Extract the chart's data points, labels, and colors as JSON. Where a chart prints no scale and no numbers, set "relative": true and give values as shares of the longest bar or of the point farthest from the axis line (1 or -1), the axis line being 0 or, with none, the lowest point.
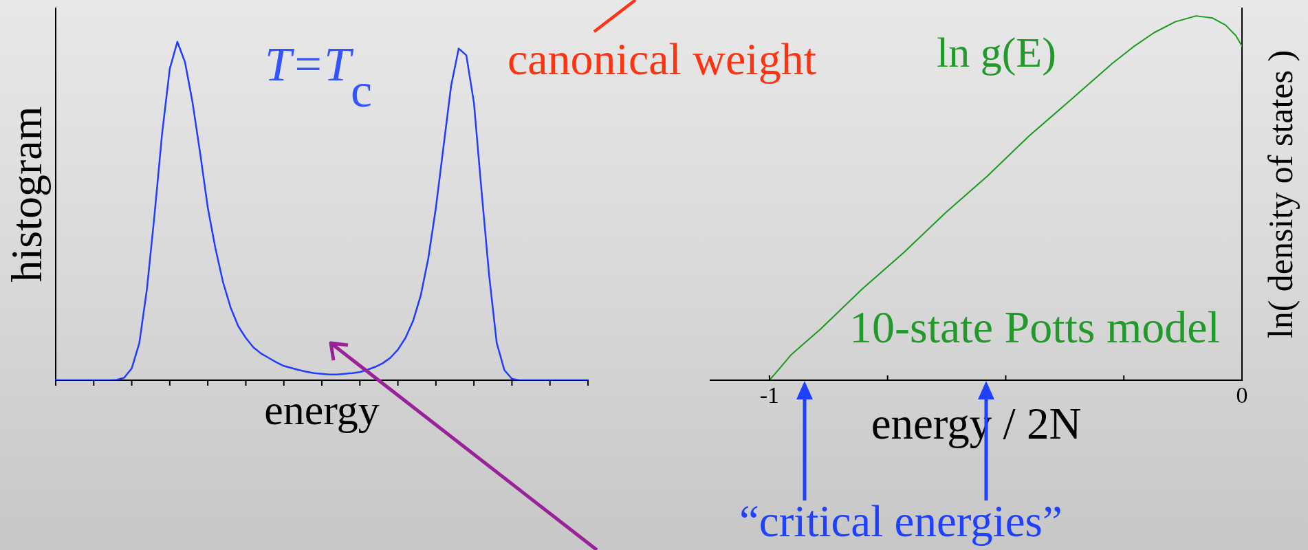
{
  "chart_data": [
    {
      "type": "line",
      "xlabel": "energy",
      "ylabel": "histogram",
      "relative": true,
      "categories": [
        null,
        null,
        null,
        null,
        null,
        null,
        null,
        null,
        null,
        null,
        null,
        null,
        null,
        null,
        null,
        null,
        null,
        null,
        null,
        null,
        null,
        null,
        null,
        null,
        null,
        null,
        null,
        null,
        null,
        null,
        null,
        null,
        null,
        null,
        null,
        null,
        null,
        null,
        null,
        null,
        null,
        null,
        null,
        null,
        null,
        null,
        null,
        null,
        null,
        null,
        null,
        null,
        null,
        null,
        null,
        null,
        null,
        null,
        null,
        null,
        null,
        null,
        null,
        null,
        null,
        null,
        null,
        null,
        null,
        null,
        null
      ],
      "series": [
        {
          "color": "#1f3cff",
          "values": [
            0,
            0,
            0,
            0,
            0,
            0,
            0,
            0,
            0.001,
            0.007,
            0.035,
            0.11,
            0.27,
            0.49,
            0.73,
            0.92,
            1,
            0.94,
            0.82,
            0.67,
            0.51,
            0.39,
            0.29,
            0.215,
            0.16,
            0.125,
            0.097,
            0.079,
            0.066,
            0.053,
            0.042,
            0.036,
            0.03,
            0.025,
            0.021,
            0.019,
            0.017,
            0.017,
            0.019,
            0.021,
            0.024,
            0.031,
            0.039,
            0.05,
            0.066,
            0.09,
            0.125,
            0.175,
            0.25,
            0.36,
            0.51,
            0.69,
            0.87,
            0.98,
            0.96,
            0.82,
            0.56,
            0.31,
            0.11,
            0.03,
            0.004,
            0,
            0,
            0,
            0,
            0,
            0,
            0,
            0,
            0,
            0
          ]
        }
      ],
      "annotations": [
        "T=T$_{c}$",
        "canonical weight"
      ]
    },
    {
      "type": "line",
      "xlabel": "energy / 2N",
      "ylabel": "ln( density of states )",
      "relative": true,
      "xlim": [
        -1.125,
        0
      ],
      "xticks": [
        -1,
        {
          "value": -0.75,
          "label": null
        },
        {
          "value": -0.5,
          "label": null
        },
        {
          "value": -0.25,
          "label": null
        },
        0
      ],
      "x": [
        -1,
        -0.98,
        -0.954,
        -0.892,
        -0.804,
        -0.716,
        -0.627,
        -0.539,
        -0.451,
        -0.362,
        -0.274,
        -0.23,
        -0.186,
        -0.141,
        -0.097,
        -0.062,
        -0.035,
        -0.013,
        0
      ],
      "series": [
        {
          "color": "#1a9a1a",
          "values": [
            0,
            0.03,
            0.07,
            0.14,
            0.25,
            0.35,
            0.46,
            0.56,
            0.67,
            0.77,
            0.87,
            0.915,
            0.954,
            0.984,
            1,
            0.994,
            0.975,
            0.946,
            0.917
          ]
        }
      ],
      "annotations": [
        "ln g(E)",
        "10-state Potts model",
        "“critical energies”"
      ]
    }
  ]
}
